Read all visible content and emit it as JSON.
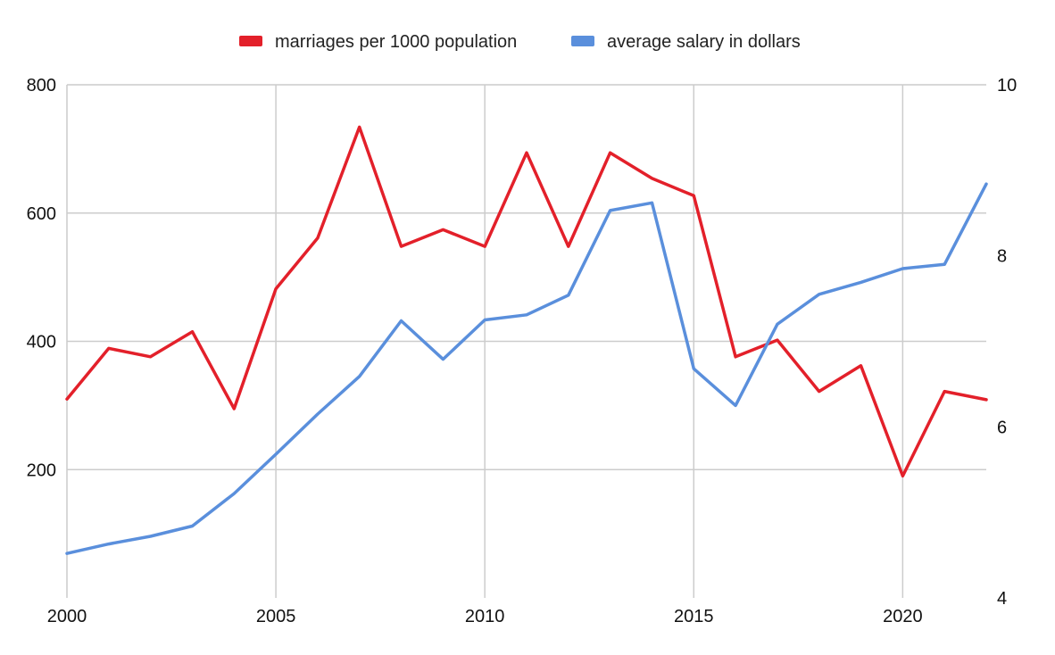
{
  "chart_data": {
    "type": "line",
    "title": "",
    "xlabel": "",
    "ylabel": "",
    "x": [
      2000,
      2001,
      2002,
      2003,
      2004,
      2005,
      2006,
      2007,
      2008,
      2009,
      2010,
      2011,
      2012,
      2013,
      2014,
      2015,
      2016,
      2017,
      2018,
      2019,
      2020,
      2021,
      2022
    ],
    "xlim": [
      2000,
      2022
    ],
    "xticks": [
      2000,
      2005,
      2010,
      2015,
      2020
    ],
    "y_left": {
      "lim": [
        0,
        800
      ],
      "ticks": [
        200,
        400,
        600,
        800
      ]
    },
    "y_right": {
      "lim": [
        4,
        10
      ],
      "ticks": [
        4,
        6,
        8,
        10
      ]
    },
    "grid": true,
    "legend_position": "top-center",
    "series": [
      {
        "name": "marriages per 1000 population",
        "color": "#e3202a",
        "axis": "left",
        "values": [
          310,
          389,
          376,
          415,
          295,
          482,
          561,
          734,
          548,
          574,
          548,
          694,
          548,
          694,
          654,
          627,
          376,
          402,
          322,
          362,
          190,
          322,
          309
        ]
      },
      {
        "name": "average salary in dollars",
        "color": "#5a8fdc",
        "axis": "right",
        "values": [
          4.52,
          4.63,
          4.72,
          4.84,
          5.22,
          5.68,
          6.15,
          6.59,
          7.24,
          6.79,
          7.25,
          7.31,
          7.54,
          8.53,
          8.62,
          6.68,
          6.25,
          7.2,
          7.55,
          7.69,
          7.85,
          7.9,
          8.84
        ]
      }
    ]
  }
}
